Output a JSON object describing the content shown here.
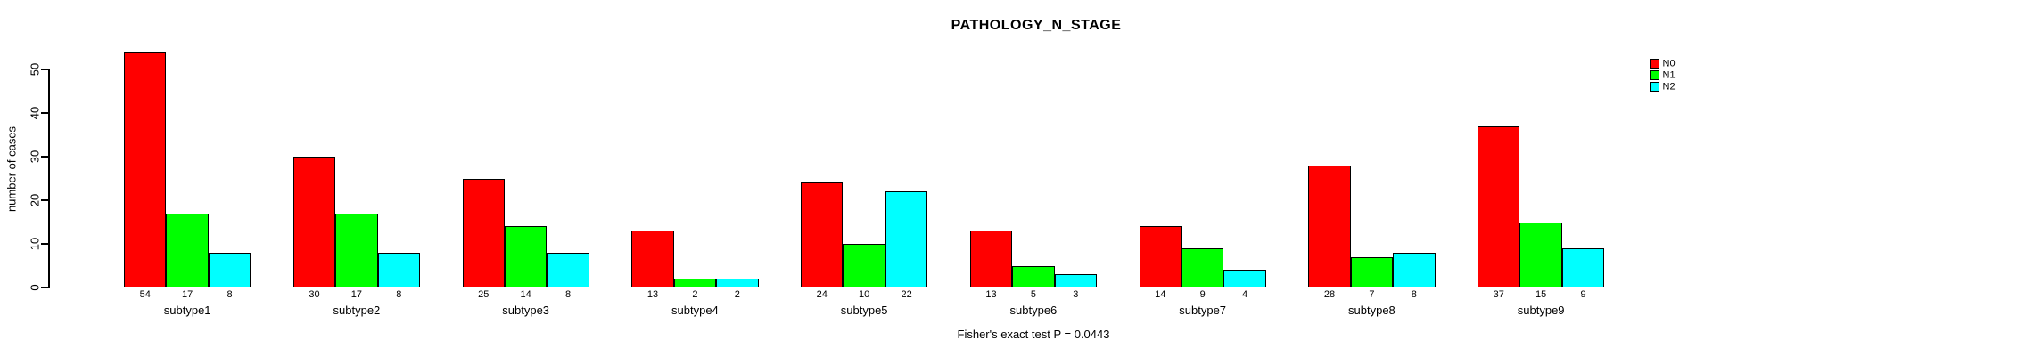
{
  "chart_data": {
    "type": "bar",
    "title": "PATHOLOGY_N_STAGE",
    "categories": [
      "subtype1",
      "subtype2",
      "subtype3",
      "subtype4",
      "subtype5",
      "subtype6",
      "subtype7",
      "subtype8",
      "subtype9"
    ],
    "series": [
      {
        "name": "N0",
        "color": "#ff0000",
        "values": [
          54,
          30,
          25,
          13,
          24,
          13,
          14,
          28,
          37
        ]
      },
      {
        "name": "N1",
        "color": "#00ff00",
        "values": [
          17,
          17,
          14,
          2,
          10,
          5,
          9,
          7,
          15
        ]
      },
      {
        "name": "N2",
        "color": "#00ffff",
        "values": [
          8,
          8,
          8,
          2,
          22,
          3,
          4,
          8,
          9
        ]
      }
    ],
    "xlabel": "",
    "ylabel": "number of cases",
    "ylim": [
      0,
      55
    ],
    "yticks": [
      0,
      10,
      20,
      30,
      40,
      50
    ],
    "grid": false,
    "legend_position": "top-right",
    "bar_value_labels_shown": true,
    "annotation": "Fisher's exact test P = 0.0443"
  }
}
